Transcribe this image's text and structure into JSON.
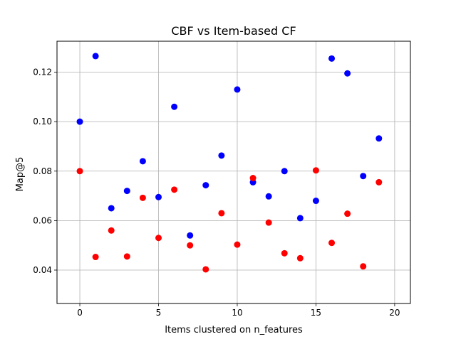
{
  "chart_data": {
    "type": "scatter",
    "title": "CBF vs Item-based CF",
    "xlabel": "Items clustered on n_features",
    "ylabel": "Map@5",
    "xlim": [
      -1.45,
      21
    ],
    "ylim": [
      0.0265,
      0.1325
    ],
    "xticks": [
      0,
      5,
      10,
      15,
      20
    ],
    "xtick_labels": [
      "0",
      "5",
      "10",
      "15",
      "20"
    ],
    "yticks": [
      0.04,
      0.06,
      0.08,
      0.1,
      0.12
    ],
    "ytick_labels": [
      "0.04",
      "0.06",
      "0.08",
      "0.10",
      "0.12"
    ],
    "grid": true,
    "series": [
      {
        "color": "#0000ff",
        "x": [
          0,
          1,
          2,
          3,
          4,
          5,
          6,
          7,
          8,
          9,
          10,
          11,
          12,
          13,
          14,
          15,
          16,
          17,
          18,
          19
        ],
        "y": [
          0.1,
          0.1265,
          0.065,
          0.072,
          0.084,
          0.0695,
          0.106,
          0.054,
          0.0743,
          0.0863,
          0.113,
          0.0755,
          0.0698,
          0.08,
          0.061,
          0.068,
          0.1255,
          0.1195,
          0.078,
          0.0932
        ]
      },
      {
        "color": "#ff0000",
        "x": [
          0,
          1,
          2,
          3,
          4,
          5,
          6,
          7,
          8,
          9,
          10,
          11,
          12,
          13,
          14,
          15,
          16,
          17,
          18,
          19
        ],
        "y": [
          0.08,
          0.0453,
          0.056,
          0.0455,
          0.0692,
          0.053,
          0.0725,
          0.05,
          0.0403,
          0.063,
          0.0503,
          0.0772,
          0.0592,
          0.0468,
          0.0448,
          0.0803,
          0.051,
          0.0628,
          0.0415,
          0.0755
        ]
      }
    ]
  }
}
